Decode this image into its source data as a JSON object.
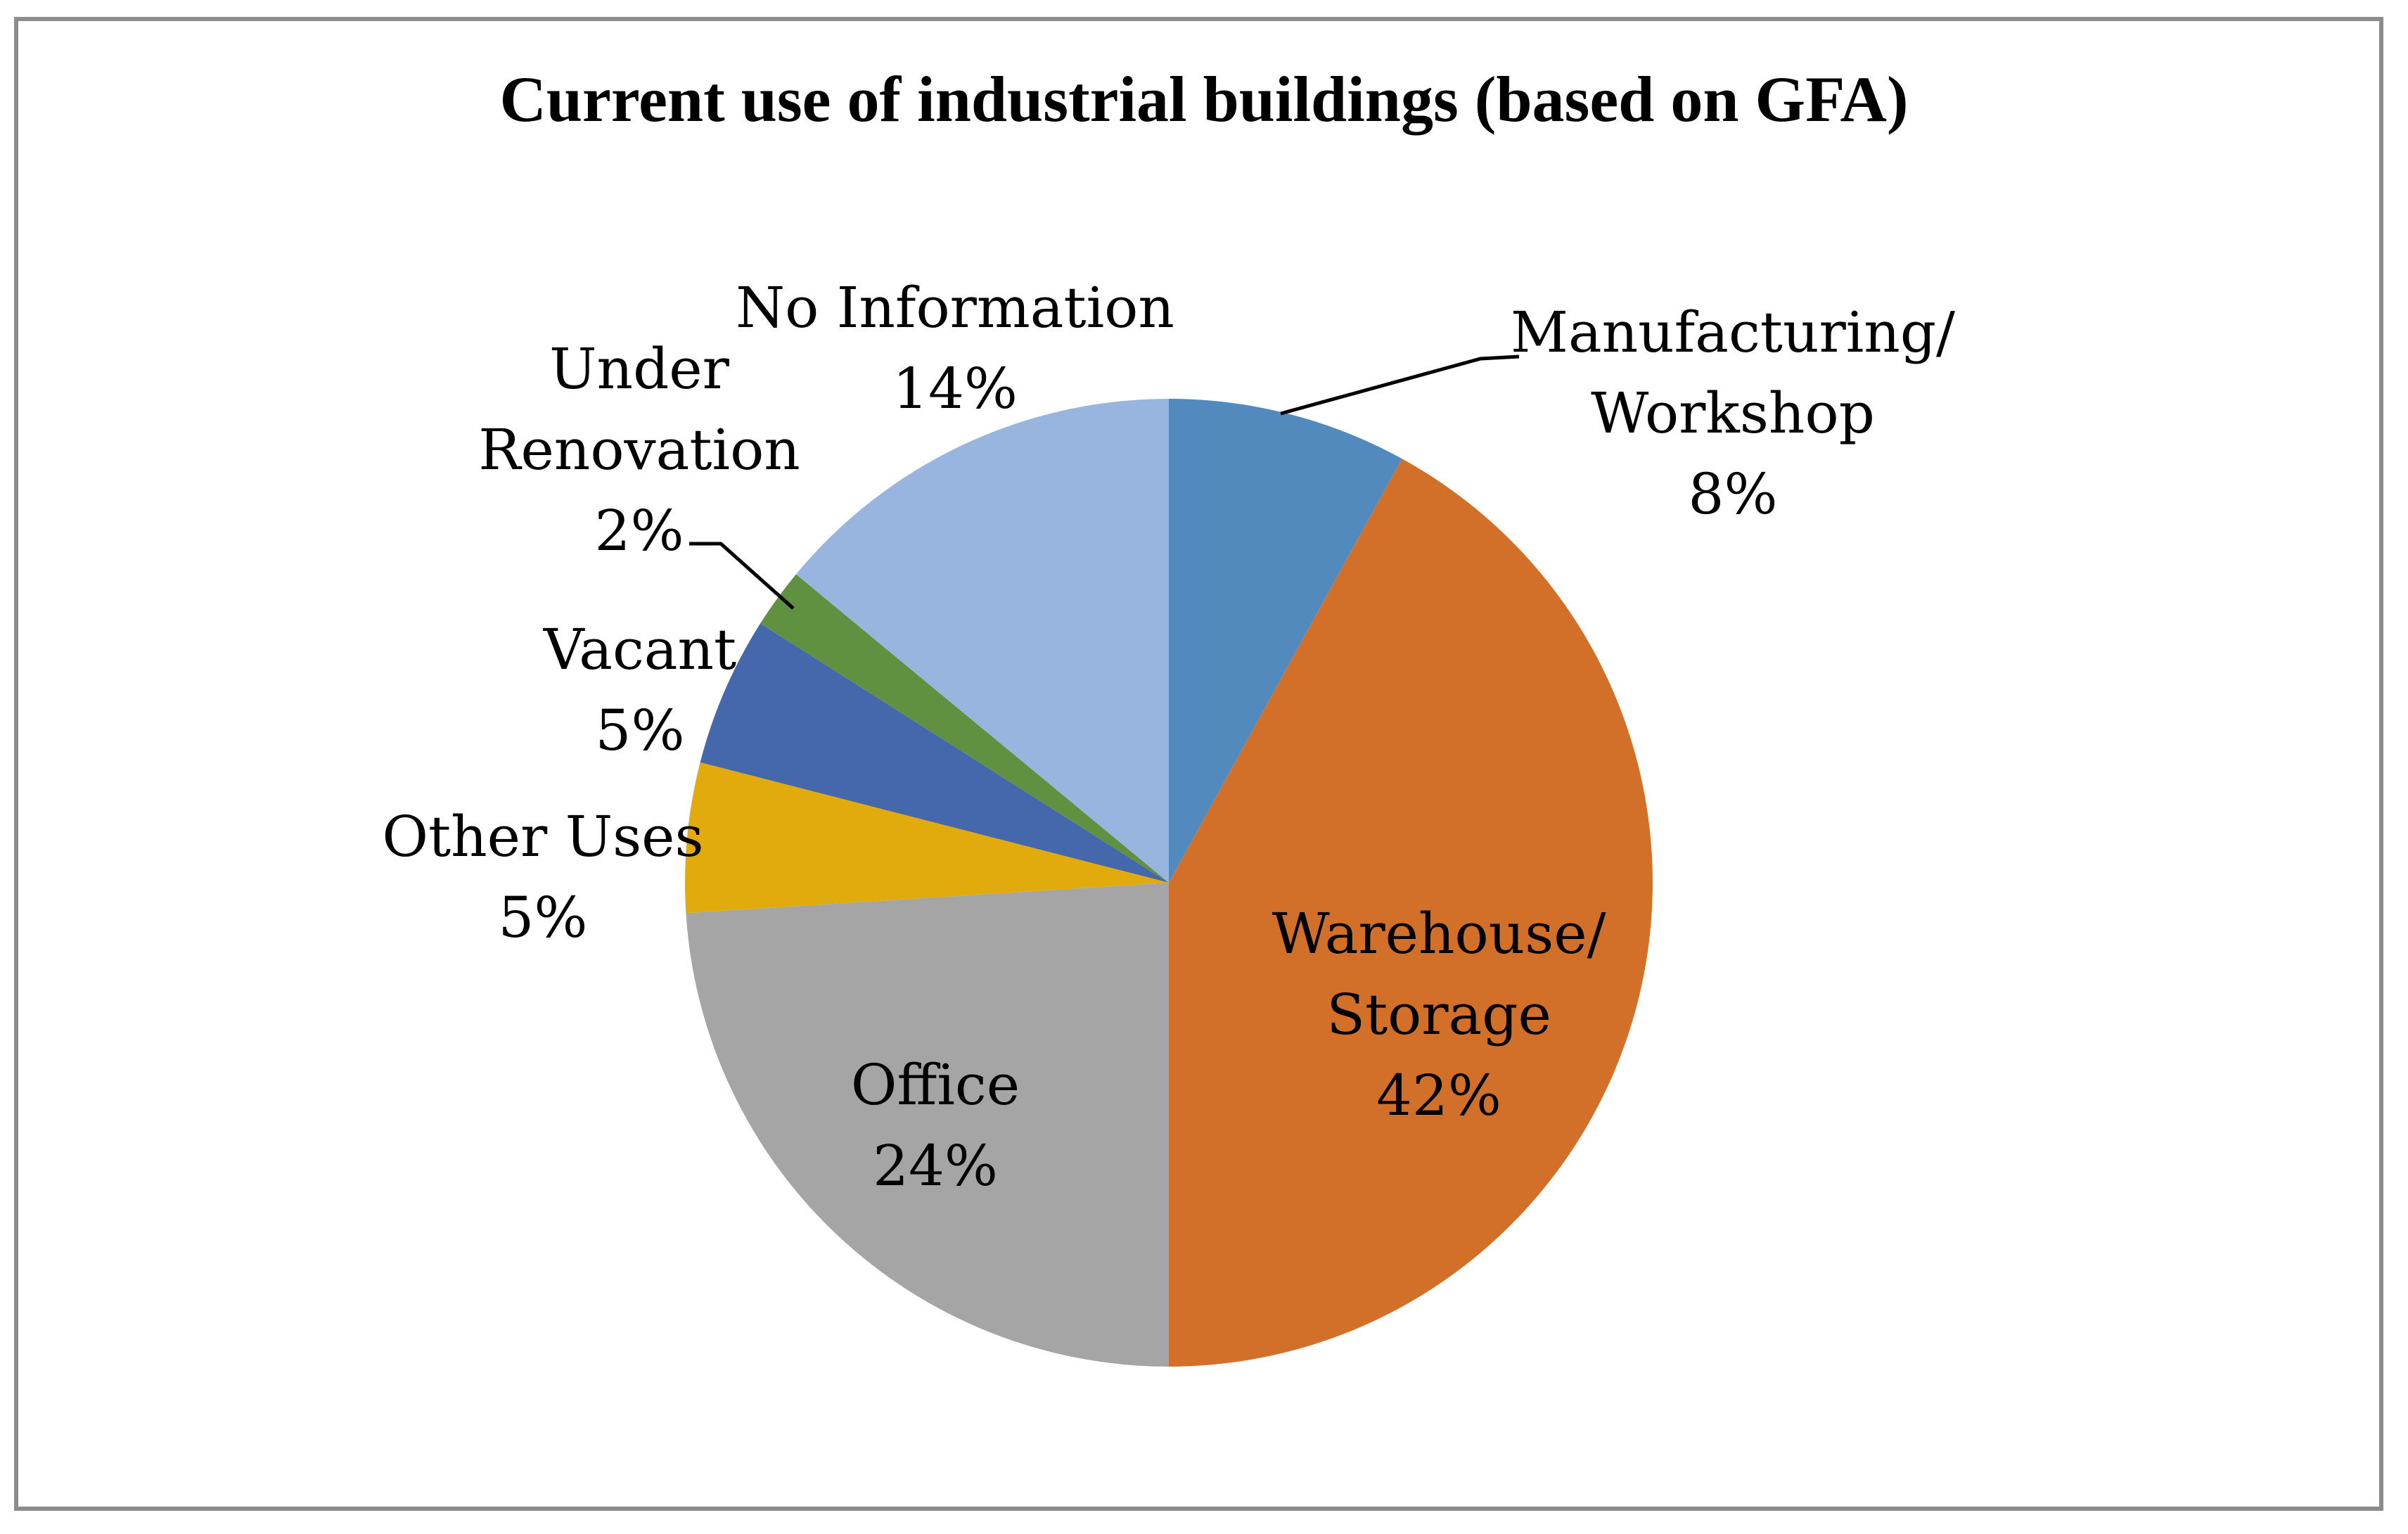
{
  "colors": {
    "background": "#FFFFFF",
    "frame_border": "#8C8C8C",
    "label_text": "#000000",
    "leader_line": "#000000"
  },
  "chart_data": {
    "type": "pie",
    "title": "Current use of industrial buildings (based on GFA)",
    "legend": "none",
    "direction": "clockwise",
    "start_angle_deg": 0,
    "label_style": "category name with percentage, outside for small slices, inside for large slices",
    "slices": [
      {
        "label": "Manufacturing/Workshop",
        "value": 8,
        "pct": "8%",
        "color": "#528ABD",
        "lines": [
          "Manufacturing/",
          "Workshop",
          "8%"
        ],
        "label_position": "outside-right-with-leader"
      },
      {
        "label": "Warehouse/Storage",
        "value": 42,
        "pct": "42%",
        "color": "#D2702A",
        "lines": [
          "Warehouse/",
          "Storage",
          "42%"
        ],
        "label_position": "inside"
      },
      {
        "label": "Office",
        "value": 24,
        "pct": "24%",
        "color": "#A5A5A5",
        "lines": [
          "Office",
          "24%"
        ],
        "label_position": "inside"
      },
      {
        "label": "Other Uses",
        "value": 5,
        "pct": "5%",
        "color": "#E1AA0D",
        "lines": [
          "Other Uses",
          "5%"
        ],
        "label_position": "outside-left"
      },
      {
        "label": "Vacant",
        "value": 5,
        "pct": "5%",
        "color": "#4568AC",
        "lines": [
          "Vacant",
          "5%"
        ],
        "label_position": "outside-left"
      },
      {
        "label": "Under Renovation",
        "value": 2,
        "pct": "2%",
        "color": "#5F9141",
        "lines": [
          "Under",
          "Renovation",
          "2%"
        ],
        "label_position": "outside-left-with-leader"
      },
      {
        "label": "No Information",
        "value": 14,
        "pct": "14%",
        "color": "#97B5DF",
        "lines": [
          "No Information",
          "14%"
        ],
        "label_position": "outside-top"
      }
    ]
  }
}
